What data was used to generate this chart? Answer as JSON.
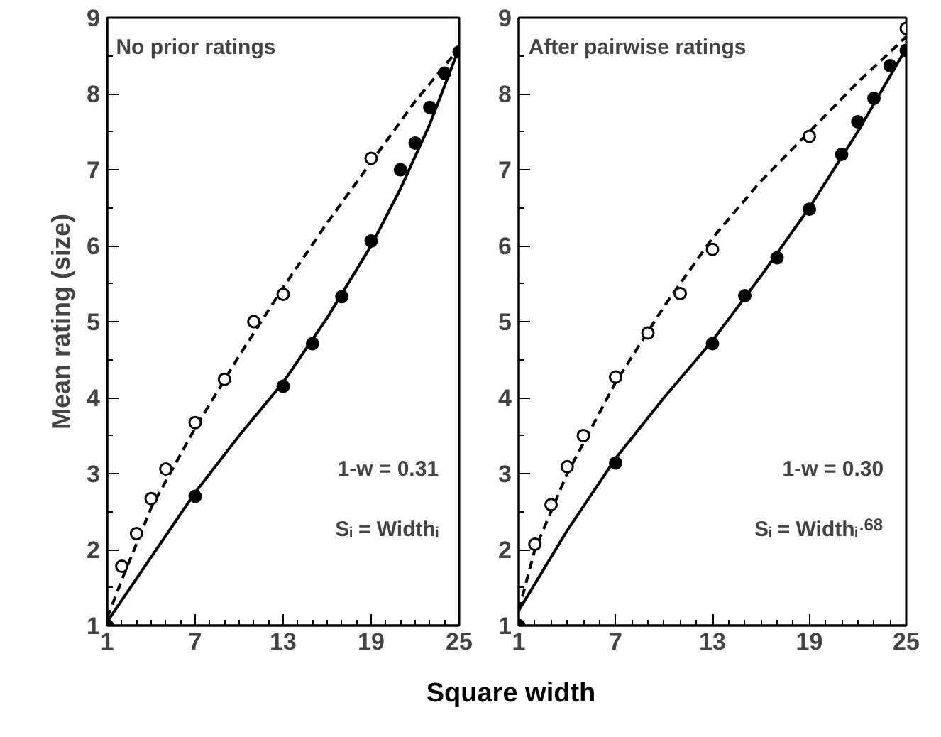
{
  "chart_data": [
    {
      "type": "scatter",
      "xlabel": "Square width",
      "ylabel": "Mean rating (size)",
      "xlim": [
        1,
        25
      ],
      "ylim": [
        1,
        9
      ],
      "xticks": [
        1,
        7,
        13,
        19,
        25
      ],
      "yticks": [
        1,
        2,
        3,
        4,
        5,
        6,
        7,
        8,
        9
      ],
      "grid": false,
      "marker": "circle",
      "annotations": [
        "No prior ratings",
        "1-w = 0.31",
        "Sᵢ = Widthᵢ"
      ],
      "series": [
        {
          "type": "line",
          "marker": "none",
          "line_style": "dashed",
          "color": "#000000",
          "x": [
            1,
            2,
            4,
            7,
            10,
            13,
            16,
            19,
            22,
            25
          ],
          "values": [
            1.1,
            1.6,
            2.55,
            3.6,
            4.55,
            5.45,
            6.3,
            7.1,
            7.9,
            8.6
          ]
        },
        {
          "type": "line",
          "marker": "none",
          "line_style": "solid",
          "color": "#000000",
          "x": [
            1,
            4,
            7,
            10,
            13,
            16,
            19,
            21,
            23,
            25
          ],
          "values": [
            1.05,
            1.9,
            2.75,
            3.5,
            4.2,
            5.05,
            6.0,
            6.75,
            7.6,
            8.6
          ]
        },
        {
          "color": "#ffffff",
          "x": [
            2,
            3,
            4,
            5,
            7,
            9,
            11,
            13,
            19
          ],
          "values": [
            1.78,
            2.21,
            2.67,
            3.06,
            3.67,
            4.24,
            5.0,
            5.36,
            7.15
          ]
        },
        {
          "color": "#000000",
          "x": [
            1,
            7,
            13,
            15,
            17,
            19,
            21,
            22,
            23,
            24,
            25
          ],
          "values": [
            1.0,
            2.7,
            4.15,
            4.71,
            5.33,
            6.06,
            7.0,
            7.35,
            7.82,
            8.27,
            8.55
          ]
        }
      ]
    },
    {
      "type": "scatter",
      "xlim": [
        1,
        25
      ],
      "ylim": [
        1,
        9
      ],
      "xticks": [
        1,
        7,
        13,
        19,
        25
      ],
      "yticks": [
        1,
        2,
        3,
        4,
        5,
        6,
        7,
        8,
        9
      ],
      "grid": false,
      "marker": "circle",
      "annotations": [
        "After pairwise ratings",
        "1-w = 0.30",
        "Sᵢ = Widthᵢ$^{.68}$"
      ],
      "series": [
        {
          "type": "line",
          "marker": "none",
          "line_style": "dashed",
          "color": "#000000",
          "x": [
            1,
            2,
            4,
            7,
            10,
            13,
            16,
            19,
            22,
            25
          ],
          "values": [
            1.2,
            2.0,
            3.0,
            4.2,
            5.2,
            6.1,
            6.85,
            7.5,
            8.15,
            8.75
          ]
        },
        {
          "type": "line",
          "marker": "none",
          "line_style": "solid",
          "color": "#000000",
          "x": [
            1,
            4,
            7,
            10,
            13,
            16,
            19,
            22,
            25
          ],
          "values": [
            1.2,
            2.25,
            3.2,
            4.0,
            4.75,
            5.6,
            6.5,
            7.5,
            8.6
          ]
        },
        {
          "color": "#ffffff",
          "x": [
            2,
            3,
            4,
            5,
            7,
            9,
            11,
            13,
            19,
            25
          ],
          "values": [
            2.07,
            2.59,
            3.09,
            3.5,
            4.27,
            4.85,
            5.37,
            5.95,
            7.44,
            8.86
          ]
        },
        {
          "color": "#000000",
          "x": [
            1,
            7,
            13,
            15,
            17,
            19,
            21,
            22,
            23,
            24,
            25
          ],
          "values": [
            1.0,
            3.14,
            4.71,
            5.34,
            5.84,
            6.48,
            7.2,
            7.63,
            7.94,
            8.37,
            8.57
          ]
        }
      ]
    }
  ]
}
